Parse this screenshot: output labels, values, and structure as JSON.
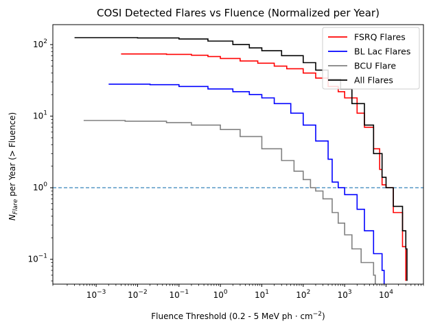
{
  "chart_data": {
    "type": "line",
    "title": "COSI Detected Flares vs Fluence (Normalized per Year)",
    "xlabel": {
      "main": "Fluence Threshold (0.2 - 5 MeV  ph · cm",
      "exp": "−2",
      "close": ")"
    },
    "ylabel": {
      "pre": "N",
      "sub": "Flare",
      "post": " per Year (> Fluence)"
    },
    "x_scale": "log",
    "y_scale": "log",
    "xlim": [
      9e-05,
      80000
    ],
    "ylim": [
      0.045,
      190
    ],
    "grid": false,
    "legend_position": "upper right",
    "x_ticks": [
      {
        "value": 0.001,
        "base": "10",
        "exp": "−3"
      },
      {
        "value": 0.01,
        "base": "10",
        "exp": "−2"
      },
      {
        "value": 0.1,
        "base": "10",
        "exp": "−1"
      },
      {
        "value": 1,
        "base": "10",
        "exp": "0"
      },
      {
        "value": 10,
        "base": "10",
        "exp": "1"
      },
      {
        "value": 100,
        "base": "10",
        "exp": "2"
      },
      {
        "value": 1000,
        "base": "10",
        "exp": "3"
      },
      {
        "value": 10000,
        "base": "10",
        "exp": "4"
      }
    ],
    "y_ticks": [
      {
        "value": 0.1,
        "base": "10",
        "exp": "−1"
      },
      {
        "value": 1,
        "base": "10",
        "exp": "0"
      },
      {
        "value": 10,
        "base": "10",
        "exp": "1"
      },
      {
        "value": 100,
        "base": "10",
        "exp": "2"
      }
    ],
    "reference_line": {
      "y": 1,
      "color": "#1f77b4",
      "style": "dashed"
    },
    "series": [
      {
        "name": "FSRQ Flares",
        "color": "#ff0000",
        "points": [
          [
            0.004,
            74
          ],
          [
            0.05,
            73
          ],
          [
            0.2,
            71
          ],
          [
            0.5,
            68
          ],
          [
            1,
            64
          ],
          [
            3,
            59
          ],
          [
            8,
            55
          ],
          [
            20,
            50
          ],
          [
            40,
            46
          ],
          [
            100,
            40
          ],
          [
            200,
            34
          ],
          [
            400,
            26
          ],
          [
            700,
            22
          ],
          [
            1000,
            18
          ],
          [
            2000,
            11
          ],
          [
            3000,
            7
          ],
          [
            5000,
            3.5
          ],
          [
            7000,
            1.8
          ],
          [
            8000,
            1.1
          ],
          [
            10000,
            1.0
          ],
          [
            15000,
            0.45
          ],
          [
            25000,
            0.15
          ],
          [
            30000,
            0.05
          ]
        ]
      },
      {
        "name": "BL Lac Flares",
        "color": "#0000ff",
        "points": [
          [
            0.002,
            28
          ],
          [
            0.02,
            27.5
          ],
          [
            0.1,
            26
          ],
          [
            0.5,
            24
          ],
          [
            2,
            22
          ],
          [
            5,
            20
          ],
          [
            10,
            18
          ],
          [
            20,
            15
          ],
          [
            50,
            11
          ],
          [
            100,
            7.5
          ],
          [
            200,
            4.5
          ],
          [
            400,
            2.5
          ],
          [
            500,
            1.2
          ],
          [
            700,
            1.0
          ],
          [
            1000,
            0.8
          ],
          [
            2000,
            0.5
          ],
          [
            3000,
            0.25
          ],
          [
            5000,
            0.12
          ],
          [
            8000,
            0.07
          ],
          [
            9000,
            0.045
          ]
        ]
      },
      {
        "name": "BCU Flare",
        "color": "#808080",
        "points": [
          [
            0.0005,
            8.7
          ],
          [
            0.005,
            8.5
          ],
          [
            0.05,
            8.1
          ],
          [
            0.2,
            7.5
          ],
          [
            1,
            6.5
          ],
          [
            3,
            5.2
          ],
          [
            10,
            3.5
          ],
          [
            30,
            2.4
          ],
          [
            60,
            1.7
          ],
          [
            100,
            1.3
          ],
          [
            150,
            1.0
          ],
          [
            200,
            0.9
          ],
          [
            300,
            0.7
          ],
          [
            500,
            0.45
          ],
          [
            700,
            0.32
          ],
          [
            1000,
            0.22
          ],
          [
            1500,
            0.14
          ],
          [
            2500,
            0.09
          ],
          [
            5000,
            0.06
          ],
          [
            5500,
            0.045
          ]
        ]
      },
      {
        "name": "All Flares",
        "color": "#000000",
        "points": [
          [
            0.0003,
            125
          ],
          [
            0.01,
            124
          ],
          [
            0.1,
            120
          ],
          [
            0.5,
            112
          ],
          [
            2,
            100
          ],
          [
            5,
            90
          ],
          [
            10,
            82
          ],
          [
            30,
            70
          ],
          [
            100,
            56
          ],
          [
            200,
            44
          ],
          [
            400,
            33
          ],
          [
            800,
            24
          ],
          [
            1500,
            15
          ],
          [
            3000,
            7.5
          ],
          [
            5000,
            3
          ],
          [
            8000,
            1.4
          ],
          [
            10000,
            1.0
          ],
          [
            15000,
            0.55
          ],
          [
            25000,
            0.25
          ],
          [
            30000,
            0.14
          ],
          [
            32000,
            0.05
          ]
        ]
      }
    ]
  }
}
